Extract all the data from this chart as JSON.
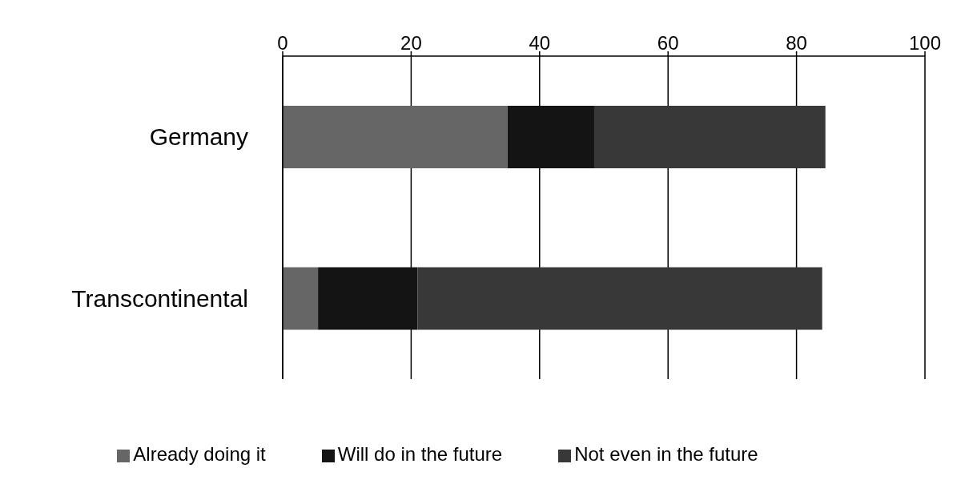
{
  "chart_data": {
    "type": "bar",
    "orientation": "horizontal",
    "stacked": true,
    "categories": [
      "Germany",
      "Transcontinental"
    ],
    "series": [
      {
        "name": "Already doing it",
        "color": "#666666",
        "values": [
          35,
          5.5
        ]
      },
      {
        "name": "Will do in the future",
        "color": "#141414",
        "values": [
          13.5,
          15.5
        ]
      },
      {
        "name": "Not even in the future",
        "color": "#383838",
        "values": [
          36,
          63
        ]
      }
    ],
    "xlim": [
      0,
      100
    ],
    "xticks": [
      0,
      20,
      40,
      60,
      80,
      100
    ],
    "grid": "x",
    "legend": "bottom"
  }
}
